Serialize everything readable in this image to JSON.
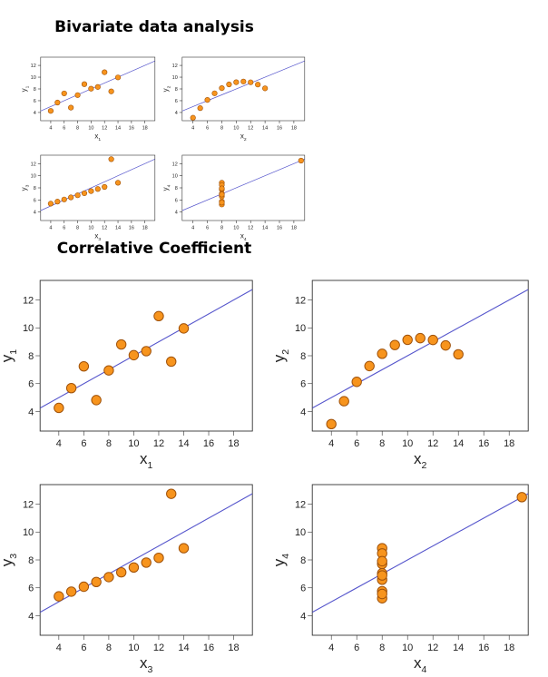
{
  "page": {
    "title": "Bivariate data analysis",
    "subtitle": "Correlative Coefficient"
  },
  "style": {
    "point_fill": "#f7941d",
    "point_stroke": "#a0520a",
    "line_color": "#5555cc",
    "axis_color": "#333333"
  },
  "chart_data": [
    {
      "type": "scatter",
      "id": "small-1",
      "xlabel_base": "x",
      "xlabel_sub": "1",
      "ylabel_base": "y",
      "ylabel_sub": "1",
      "xlim": [
        2.5,
        19.5
      ],
      "ylim": [
        2.6,
        13.4
      ],
      "xticks": [
        4,
        6,
        8,
        10,
        12,
        14,
        16,
        18
      ],
      "yticks": [
        4,
        6,
        8,
        10,
        12
      ],
      "x": [
        10,
        8,
        13,
        9,
        11,
        14,
        6,
        4,
        12,
        7,
        5
      ],
      "y": [
        8.04,
        6.95,
        7.58,
        8.81,
        8.33,
        9.96,
        7.24,
        4.26,
        10.84,
        4.82,
        5.68
      ],
      "fit": {
        "intercept": 3.0,
        "slope": 0.5
      }
    },
    {
      "type": "scatter",
      "id": "small-2",
      "xlabel_base": "x",
      "xlabel_sub": "2",
      "ylabel_base": "y",
      "ylabel_sub": "2",
      "xlim": [
        2.5,
        19.5
      ],
      "ylim": [
        2.6,
        13.4
      ],
      "xticks": [
        4,
        6,
        8,
        10,
        12,
        14,
        16,
        18
      ],
      "yticks": [
        4,
        6,
        8,
        10,
        12
      ],
      "x": [
        10,
        8,
        13,
        9,
        11,
        14,
        6,
        4,
        12,
        7,
        5
      ],
      "y": [
        9.14,
        8.14,
        8.74,
        8.77,
        9.26,
        8.1,
        6.13,
        3.1,
        9.13,
        7.26,
        4.74
      ],
      "fit": {
        "intercept": 3.0,
        "slope": 0.5
      }
    },
    {
      "type": "scatter",
      "id": "small-3",
      "xlabel_base": "x",
      "xlabel_sub": "3",
      "ylabel_base": "y",
      "ylabel_sub": "3",
      "xlim": [
        2.5,
        19.5
      ],
      "ylim": [
        2.6,
        13.4
      ],
      "xticks": [
        4,
        6,
        8,
        10,
        12,
        14,
        16,
        18
      ],
      "yticks": [
        4,
        6,
        8,
        10,
        12
      ],
      "x": [
        10,
        8,
        13,
        9,
        11,
        14,
        6,
        4,
        12,
        7,
        5
      ],
      "y": [
        7.46,
        6.77,
        12.74,
        7.11,
        7.81,
        8.84,
        6.08,
        5.39,
        8.15,
        6.42,
        5.73
      ],
      "fit": {
        "intercept": 3.0,
        "slope": 0.5
      }
    },
    {
      "type": "scatter",
      "id": "small-4",
      "xlabel_base": "x",
      "xlabel_sub": "4",
      "ylabel_base": "y",
      "ylabel_sub": "4",
      "xlim": [
        2.5,
        19.5
      ],
      "ylim": [
        2.6,
        13.4
      ],
      "xticks": [
        4,
        6,
        8,
        10,
        12,
        14,
        16,
        18
      ],
      "yticks": [
        4,
        6,
        8,
        10,
        12
      ],
      "x": [
        8,
        8,
        8,
        8,
        8,
        8,
        8,
        19,
        8,
        8,
        8
      ],
      "y": [
        6.58,
        5.76,
        7.71,
        8.84,
        8.47,
        7.04,
        5.25,
        12.5,
        5.56,
        7.91,
        6.89
      ],
      "fit": {
        "intercept": 3.0,
        "slope": 0.5
      }
    },
    {
      "type": "scatter",
      "id": "large-1",
      "xlabel_base": "x",
      "xlabel_sub": "1",
      "ylabel_base": "y",
      "ylabel_sub": "1",
      "xlim": [
        2.5,
        19.5
      ],
      "ylim": [
        2.6,
        13.4
      ],
      "xticks": [
        4,
        6,
        8,
        10,
        12,
        14,
        16,
        18
      ],
      "yticks": [
        4,
        6,
        8,
        10,
        12
      ],
      "x": [
        10,
        8,
        13,
        9,
        11,
        14,
        6,
        4,
        12,
        7,
        5
      ],
      "y": [
        8.04,
        6.95,
        7.58,
        8.81,
        8.33,
        9.96,
        7.24,
        4.26,
        10.84,
        4.82,
        5.68
      ],
      "fit": {
        "intercept": 3.0,
        "slope": 0.5
      }
    },
    {
      "type": "scatter",
      "id": "large-2",
      "xlabel_base": "x",
      "xlabel_sub": "2",
      "ylabel_base": "y",
      "ylabel_sub": "2",
      "xlim": [
        2.5,
        19.5
      ],
      "ylim": [
        2.6,
        13.4
      ],
      "xticks": [
        4,
        6,
        8,
        10,
        12,
        14,
        16,
        18
      ],
      "yticks": [
        4,
        6,
        8,
        10,
        12
      ],
      "x": [
        10,
        8,
        13,
        9,
        11,
        14,
        6,
        4,
        12,
        7,
        5
      ],
      "y": [
        9.14,
        8.14,
        8.74,
        8.77,
        9.26,
        8.1,
        6.13,
        3.1,
        9.13,
        7.26,
        4.74
      ],
      "fit": {
        "intercept": 3.0,
        "slope": 0.5
      }
    },
    {
      "type": "scatter",
      "id": "large-3",
      "xlabel_base": "x",
      "xlabel_sub": "3",
      "ylabel_base": "y",
      "ylabel_sub": "3",
      "xlim": [
        2.5,
        19.5
      ],
      "ylim": [
        2.6,
        13.4
      ],
      "xticks": [
        4,
        6,
        8,
        10,
        12,
        14,
        16,
        18
      ],
      "yticks": [
        4,
        6,
        8,
        10,
        12
      ],
      "x": [
        10,
        8,
        13,
        9,
        11,
        14,
        6,
        4,
        12,
        7,
        5
      ],
      "y": [
        7.46,
        6.77,
        12.74,
        7.11,
        7.81,
        8.84,
        6.08,
        5.39,
        8.15,
        6.42,
        5.73
      ],
      "fit": {
        "intercept": 3.0,
        "slope": 0.5
      }
    },
    {
      "type": "scatter",
      "id": "large-4",
      "xlabel_base": "x",
      "xlabel_sub": "4",
      "ylabel_base": "y",
      "ylabel_sub": "4",
      "xlim": [
        2.5,
        19.5
      ],
      "ylim": [
        2.6,
        13.4
      ],
      "xticks": [
        4,
        6,
        8,
        10,
        12,
        14,
        16,
        18
      ],
      "yticks": [
        4,
        6,
        8,
        10,
        12
      ],
      "x": [
        8,
        8,
        8,
        8,
        8,
        8,
        8,
        19,
        8,
        8,
        8
      ],
      "y": [
        6.58,
        5.76,
        7.71,
        8.84,
        8.47,
        7.04,
        5.25,
        12.5,
        5.56,
        7.91,
        6.89
      ],
      "fit": {
        "intercept": 3.0,
        "slope": 0.5
      }
    }
  ]
}
